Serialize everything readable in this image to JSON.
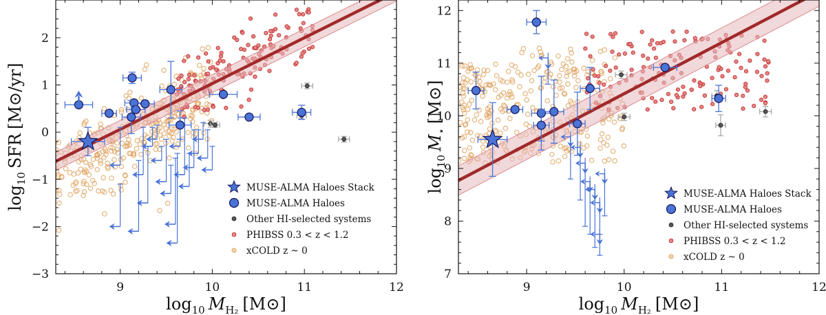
{
  "chart_data": [
    {
      "type": "scatter",
      "panel": "left",
      "xlabel": "log10 M_H2 [M☉]",
      "ylabel": "log10 SFR [M☉/yr]",
      "xlabel_parts": {
        "prefix": "log",
        "sub": "10",
        "var": "M",
        "var_sub": "H₂",
        "unit": "[M⊙]"
      },
      "ylabel_parts": {
        "prefix": "log",
        "sub": "10",
        "name": "SFR",
        "unit": "[M⊙/yr]"
      },
      "xlim": [
        8.3,
        12
      ],
      "ylim": [
        -3,
        2.8
      ],
      "xticks": [
        9,
        10,
        11,
        12
      ],
      "yticks": [
        -3,
        -2,
        -1,
        0,
        1,
        2
      ],
      "xtick_labels": [
        "9",
        "10",
        "11",
        "12"
      ],
      "ytick_labels": [
        "−3",
        "−2",
        "−1",
        "0",
        "1",
        "2"
      ],
      "fit": {
        "slope": 0.97,
        "intercept": -8.67,
        "band": 0.19
      },
      "legend": [
        "MUSE-ALMA Haloes Stack",
        "MUSE-ALMA Haloes",
        "Other HI-selected systems",
        "PHIBSS 0.3 < z < 1.2",
        "xCOLD z ~ 0"
      ],
      "legend_position": "lower-right",
      "series": [
        {
          "name": "MUSE-ALMA Haloes Stack",
          "points": [
            {
              "x": 8.65,
              "y": -0.2,
              "xerr": 0.18,
              "yerr": 0.3
            }
          ],
          "arrow_up": {
            "x": 8.55,
            "y": 0.82
          }
        },
        {
          "name": "MUSE-ALMA Haloes",
          "points": [
            {
              "x": 8.55,
              "y": 0.58,
              "xerr": 0.15,
              "yerr": 0
            },
            {
              "x": 8.88,
              "y": 0.4,
              "xerr": 0.08,
              "yerr": 0
            },
            {
              "x": 9.13,
              "y": 1.15,
              "xerr": 0.1,
              "yerr": 0.12
            },
            {
              "x": 9.15,
              "y": 0.62,
              "xerr": 0.1,
              "yerr": 0
            },
            {
              "x": 9.17,
              "y": 0.48,
              "xerr": 0.1,
              "yerr": 0
            },
            {
              "x": 9.27,
              "y": 0.6,
              "xerr": 0.1,
              "yerr": 0
            },
            {
              "x": 9.12,
              "y": 0.32,
              "xerr": 0.1,
              "yerr": 0.35
            },
            {
              "x": 9.55,
              "y": 0.9,
              "xerr": 0.12,
              "yerr": 0.6
            },
            {
              "x": 9.65,
              "y": 0.15,
              "xerr": 0.12,
              "yerr": 0.3
            },
            {
              "x": 10.12,
              "y": 0.8,
              "xerr": 0.15,
              "yerr": 0
            },
            {
              "x": 10.4,
              "y": 0.32,
              "xerr": 0.12,
              "yerr": 0
            },
            {
              "x": 10.97,
              "y": 0.42,
              "xerr": 0.1,
              "yerr": 0.15
            }
          ]
        },
        {
          "name": "MUSE-ALMA Haloes (upper limits)",
          "upper_limits": [
            {
              "x": 9.45,
              "y": -0.6,
              "dx": 0.12,
              "err_top": 0.3
            },
            {
              "x": 9.5,
              "y": -1.05,
              "dx": 0.12,
              "err_top": 0.9
            },
            {
              "x": 9.55,
              "y": -1.3,
              "dx": 0.12,
              "err_top": 0.6
            },
            {
              "x": 9.6,
              "y": -1.95,
              "dx": 0.12,
              "err_top": 1.4
            },
            {
              "x": 9.62,
              "y": -2.35,
              "dx": 0.12,
              "err_top": 1.9
            },
            {
              "x": 9.65,
              "y": -0.3,
              "dx": 0.12,
              "err_top": 0.6
            },
            {
              "x": 9.7,
              "y": -0.9,
              "dx": 0.12,
              "err_top": 1.2
            },
            {
              "x": 9.75,
              "y": -1.15,
              "dx": 0.12,
              "err_top": 0.7
            },
            {
              "x": 9.8,
              "y": -0.75,
              "dx": 0.12,
              "err_top": 0.8
            },
            {
              "x": 9.85,
              "y": -0.45,
              "dx": 0.12,
              "err_top": 0.5
            },
            {
              "x": 9.9,
              "y": -0.15,
              "dx": 0.12,
              "err_top": 0.35
            },
            {
              "x": 9.95,
              "y": -0.55,
              "dx": 0.12,
              "err_top": 0.6
            },
            {
              "x": 10.0,
              "y": -0.8,
              "dx": 0.12,
              "err_top": 0.5
            },
            {
              "x": 9.35,
              "y": -0.3,
              "dx": 0.12,
              "err_top": 0.4
            },
            {
              "x": 9.3,
              "y": -1.5,
              "dx": 0.12,
              "err_top": 1.2
            },
            {
              "x": 9.2,
              "y": -2.1,
              "dx": 0.12,
              "err_top": 1.5
            },
            {
              "x": 9.0,
              "y": -2.0,
              "dx": 0.12,
              "err_top": 0.9
            },
            {
              "x": 9.25,
              "y": -0.9,
              "dx": 0.12,
              "err_top": 1.0
            },
            {
              "x": 9.0,
              "y": -0.7,
              "dx": 0.12,
              "err_top": 0.8
            },
            {
              "x": 9.4,
              "y": -0.15,
              "dx": 0.12,
              "err_top": 0.3
            }
          ]
        },
        {
          "name": "Other HI-selected systems",
          "points": [
            {
              "x": 9.98,
              "y": 0.18,
              "xerr": 0.07,
              "yerr": 0.07
            },
            {
              "x": 10.03,
              "y": 0.15,
              "xerr": 0.05,
              "yerr": 0.05
            },
            {
              "x": 11.03,
              "y": 0.98,
              "xerr": 0.06,
              "yerr": 0.06
            },
            {
              "x": 10.97,
              "y": 0.35,
              "xerr": 0.05,
              "yerr": 0.06
            },
            {
              "x": 11.43,
              "y": -0.15,
              "xerr": 0.06,
              "yerr": 0.06
            }
          ]
        },
        {
          "name": "PHIBSS 0.3 < z < 1.2",
          "cloud": {
            "xmin": 9.6,
            "xmax": 11.1,
            "around_fit": 0.35,
            "count": 150
          }
        },
        {
          "name": "xCOLD z ~ 0",
          "cloud": {
            "xmin": 8.3,
            "xmax": 10.0,
            "around_fit": 0.45,
            "count": 320
          }
        }
      ]
    },
    {
      "type": "scatter",
      "panel": "right",
      "xlabel": "log10 M_H2 [M☉]",
      "ylabel": "log10 M★ [M☉]",
      "xlabel_parts": {
        "prefix": "log",
        "sub": "10",
        "var": "M",
        "var_sub": "H₂",
        "unit": "[M⊙]"
      },
      "ylabel_parts": {
        "prefix": "log",
        "sub": "10",
        "var": "M",
        "var_sub": "⋆",
        "unit": "[M⊙]"
      },
      "xlim": [
        8.3,
        12
      ],
      "ylim": [
        7,
        12.2
      ],
      "xticks": [
        9,
        10,
        11,
        12
      ],
      "yticks": [
        7,
        8,
        9,
        10,
        11,
        12
      ],
      "xtick_labels": [
        "9",
        "10",
        "11",
        "12"
      ],
      "ytick_labels": [
        "7",
        "8",
        "9",
        "10",
        "11",
        "12"
      ],
      "fit": {
        "slope": 0.97,
        "intercept": 0.72,
        "band": 0.28
      },
      "legend": [
        "MUSE-ALMA Haloes Stack",
        "MUSE-ALMA Haloes",
        "Other HI-selected systems",
        "PHIBSS 0.3 < z < 1.2",
        "xCOLD z ~ 0"
      ],
      "legend_position": "lower-right",
      "series": [
        {
          "name": "MUSE-ALMA Haloes Stack",
          "points": [
            {
              "x": 8.65,
              "y": 9.55,
              "xerr": 0.15,
              "yerr": 0.7
            }
          ]
        },
        {
          "name": "MUSE-ALMA Haloes",
          "points": [
            {
              "x": 8.48,
              "y": 10.48,
              "xerr": 0.08,
              "yerr": 0.35
            },
            {
              "x": 8.88,
              "y": 10.12,
              "xerr": 0.08,
              "yerr": 0
            },
            {
              "x": 9.1,
              "y": 11.78,
              "xerr": 0.1,
              "yerr": 0.22
            },
            {
              "x": 9.15,
              "y": 10.05,
              "xerr": 0.1,
              "yerr": 0.7
            },
            {
              "x": 9.15,
              "y": 9.82,
              "xerr": 0.08,
              "yerr": 0.3
            },
            {
              "x": 9.28,
              "y": 10.08,
              "xerr": 0.1,
              "yerr": 0.6
            },
            {
              "x": 9.52,
              "y": 9.85,
              "xerr": 0.08,
              "yerr": 0.6
            },
            {
              "x": 9.65,
              "y": 10.52,
              "xerr": 0.1,
              "yerr": 0.4
            },
            {
              "x": 10.42,
              "y": 10.92,
              "xerr": 0.12,
              "yerr": 0
            },
            {
              "x": 10.97,
              "y": 10.33,
              "xerr": 0.07,
              "yerr": 0.25
            }
          ]
        },
        {
          "name": "MUSE-ALMA Haloes (upper limits)",
          "upper_limits": [
            {
              "x": 9.22,
              "y": 11.1,
              "dy": 0.22,
              "err_bottom": 0.5
            },
            {
              "x": 9.45,
              "y": 9.6,
              "dy": 0.2,
              "err_bottom": 0.8
            },
            {
              "x": 9.55,
              "y": 9.4,
              "dy": 0.2,
              "err_bottom": 1.0
            },
            {
              "x": 9.6,
              "y": 9.1,
              "dy": 0.2,
              "err_bottom": 1.2
            },
            {
              "x": 9.65,
              "y": 8.75,
              "dy": 0.2,
              "err_bottom": 1.0
            },
            {
              "x": 9.7,
              "y": 8.6,
              "dy": 0.2,
              "err_bottom": 1.1
            },
            {
              "x": 9.75,
              "y": 8.35,
              "dy": 0.2,
              "err_bottom": 0.6
            },
            {
              "x": 9.8,
              "y": 8.9,
              "dy": 0.2,
              "err_bottom": 0.8
            },
            {
              "x": 9.75,
              "y": 7.75,
              "dy": 0.2,
              "err_bottom": 0.4
            }
          ]
        },
        {
          "name": "Other HI-selected systems",
          "points": [
            {
              "x": 9.97,
              "y": 10.78,
              "xerr": 0.06,
              "yerr": 0.07
            },
            {
              "x": 10.0,
              "y": 9.98,
              "xerr": 0.06,
              "yerr": 0.07
            },
            {
              "x": 10.95,
              "y": 10.38,
              "xerr": 0.05,
              "yerr": 0.1
            },
            {
              "x": 10.99,
              "y": 9.82,
              "xerr": 0.05,
              "yerr": 0.2
            },
            {
              "x": 11.45,
              "y": 10.08,
              "xerr": 0.06,
              "yerr": 0.1
            }
          ]
        },
        {
          "name": "PHIBSS 0.3 < z < 1.2",
          "cloud": {
            "xmin": 9.6,
            "xmax": 11.5,
            "ymin": 10.1,
            "ymax": 11.6,
            "count": 150
          }
        },
        {
          "name": "xCOLD z ~ 0",
          "cloud": {
            "xmin": 8.3,
            "xmax": 10.0,
            "ymin": 9.1,
            "ymax": 11.3,
            "count": 320
          }
        }
      ]
    }
  ],
  "colors": {
    "blue": "#4a73d6",
    "blue_edge": "#13135a",
    "fit_line": "#a12a2a",
    "band_fill": "#e6b8bb",
    "band_edge": "#d98a8d",
    "phibss": "#c83535",
    "xcold": "#e0a766",
    "other": "#555555",
    "other_err": "#a8a8a8"
  }
}
